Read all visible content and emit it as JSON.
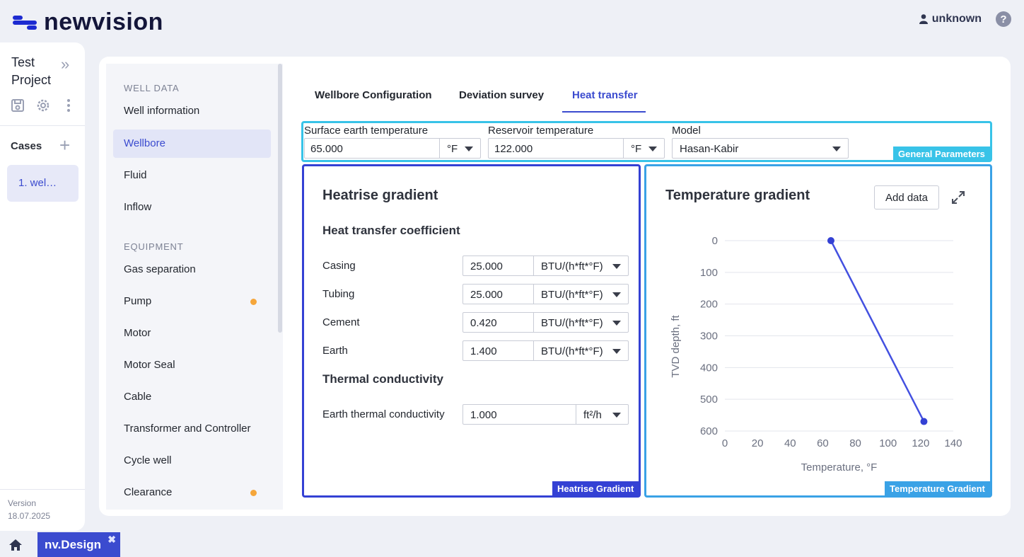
{
  "app": {
    "logo_text": "newvision",
    "user": "unknown",
    "help": "?"
  },
  "project": {
    "title": "Test Project",
    "cases_label": "Cases",
    "cases": [
      "1. wel…"
    ],
    "version_label": "Version",
    "version_date": "18.07.2025"
  },
  "nav": {
    "section_well": "WELL DATA",
    "section_equipment": "EQUIPMENT",
    "items": [
      {
        "label": "Well information",
        "active": false,
        "dot": false
      },
      {
        "label": "Wellbore",
        "active": true,
        "dot": false
      },
      {
        "label": "Fluid",
        "active": false,
        "dot": false
      },
      {
        "label": "Inflow",
        "active": false,
        "dot": false
      },
      {
        "label": "Gas separation",
        "active": false,
        "dot": false
      },
      {
        "label": "Pump",
        "active": false,
        "dot": true
      },
      {
        "label": "Motor",
        "active": false,
        "dot": false
      },
      {
        "label": "Motor Seal",
        "active": false,
        "dot": false
      },
      {
        "label": "Cable",
        "active": false,
        "dot": false
      },
      {
        "label": "Transformer and Controller",
        "active": false,
        "dot": false
      },
      {
        "label": "Cycle well",
        "active": false,
        "dot": false
      },
      {
        "label": "Clearance",
        "active": false,
        "dot": true
      }
    ]
  },
  "tabs": [
    {
      "label": "Wellbore Configuration"
    },
    {
      "label": "Deviation survey"
    },
    {
      "label": "Heat transfer"
    }
  ],
  "general": {
    "badge": "General Parameters",
    "surface_label": "Surface earth temperature",
    "surface_value": "65.000",
    "surface_unit": "°F",
    "reservoir_label": "Reservoir temperature",
    "reservoir_value": "122.000",
    "reservoir_unit": "°F",
    "model_label": "Model",
    "model_value": "Hasan-Kabir"
  },
  "heatrise": {
    "badge": "Heatrise Gradient",
    "title": "Heatrise gradient",
    "htc_title": "Heat transfer coefficient",
    "rows": [
      {
        "label": "Casing",
        "value": "25.000",
        "unit": "BTU/(h*ft*°F)"
      },
      {
        "label": "Tubing",
        "value": "25.000",
        "unit": "BTU/(h*ft*°F)"
      },
      {
        "label": "Cement",
        "value": "0.420",
        "unit": "BTU/(h*ft*°F)"
      },
      {
        "label": "Earth",
        "value": "1.400",
        "unit": "BTU/(h*ft*°F)"
      }
    ],
    "tc_title": "Thermal conductivity",
    "tc_label": "Earth thermal conductivity",
    "tc_value": "1.000",
    "tc_unit": "ft²/h"
  },
  "tempgrad": {
    "badge": "Temperature Gradient",
    "title": "Temperature gradient",
    "add_data": "Add data"
  },
  "colors": {
    "accent": "#3b4bcf",
    "cyan": "#38c3e8",
    "navy_box": "#3441d4",
    "blue_box": "#3aa2e6",
    "dot": "#f5a63b"
  },
  "chart_data": {
    "type": "line",
    "xlabel": "Temperature, °F",
    "ylabel": "TVD depth, ft",
    "xlim": [
      0,
      140
    ],
    "ylim": [
      0,
      600
    ],
    "y_inverted": true,
    "x_ticks": [
      0,
      20,
      40,
      60,
      80,
      100,
      120,
      140
    ],
    "y_ticks": [
      0,
      100,
      200,
      300,
      400,
      500,
      600
    ],
    "grid": true,
    "series": [
      {
        "x": [
          65,
          122
        ],
        "y": [
          0,
          570
        ]
      }
    ]
  },
  "bottom": {
    "app_tab": "nv.Design",
    "close": "✖"
  }
}
